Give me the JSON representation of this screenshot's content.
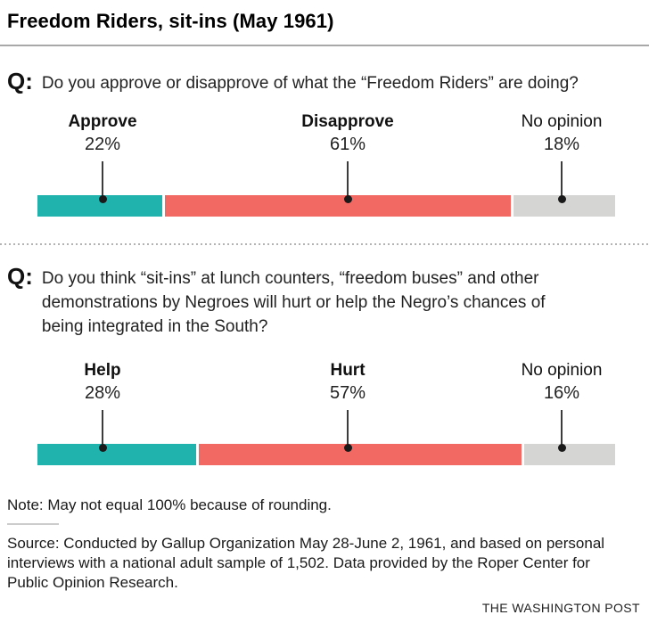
{
  "header": {
    "title": "Freedom Riders, sit-ins (May 1961)"
  },
  "questions": [
    {
      "prefix": "Q:",
      "text": "Do you approve or disapprove of what the “Freedom Riders” are doing?"
    },
    {
      "prefix": "Q:",
      "text": "Do you think “sit-ins” at lunch counters, “freedom buses” and other demonstrations by Negroes will hurt or help the Negro’s chances of being integrated in the South?"
    }
  ],
  "chart_data": [
    {
      "type": "bar",
      "stacked": true,
      "orientation": "horizontal",
      "xlim": [
        0,
        100
      ],
      "categories": [
        "Approve",
        "Disapprove",
        "No opinion"
      ],
      "values": [
        22,
        61,
        18
      ],
      "value_labels": [
        "22%",
        "61%",
        "18%"
      ],
      "colors": [
        "#20b2ad",
        "#f26862",
        "#d5d5d4"
      ],
      "emphasized_labels": [
        true,
        true,
        false
      ]
    },
    {
      "type": "bar",
      "stacked": true,
      "orientation": "horizontal",
      "xlim": [
        0,
        100
      ],
      "categories": [
        "Help",
        "Hurt",
        "No opinion"
      ],
      "values": [
        28,
        57,
        16
      ],
      "value_labels": [
        "28%",
        "57%",
        "16%"
      ],
      "colors": [
        "#20b2ad",
        "#f26862",
        "#d5d5d4"
      ],
      "emphasized_labels": [
        true,
        true,
        false
      ]
    }
  ],
  "footer": {
    "note": "Note: May not equal 100% because of rounding.",
    "source": "Source: Conducted by Gallup Organization May 28-June 2, 1961, and based on personal interviews with a national adult sample of 1,502. Data provided by the Roper Center for Public Opinion Research.",
    "credit": "THE WASHINGTON POST"
  }
}
